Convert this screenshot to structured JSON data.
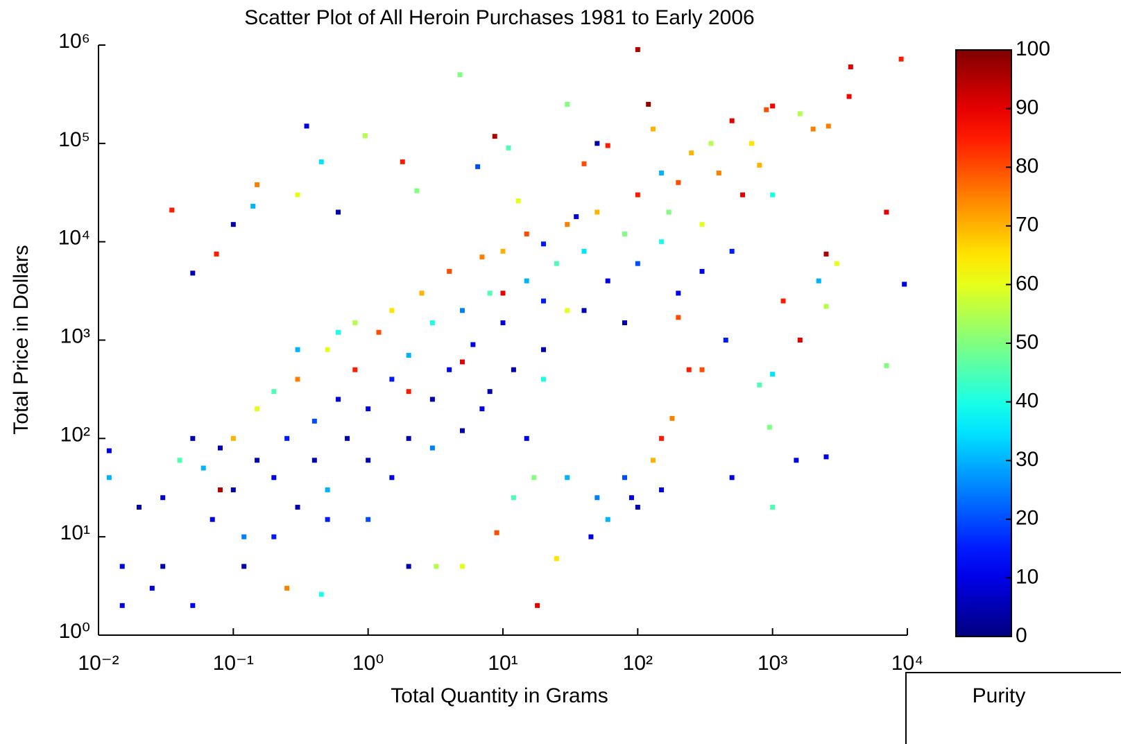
{
  "chart_data": {
    "type": "scatter",
    "title": "Scatter Plot of All Heroin Purchases 1981 to Early 2006",
    "x_label": "Total Quantity in Grams",
    "y_label": "Total Price in Dollars",
    "colorbar_label": "Purity",
    "xscale": "log",
    "yscale": "log",
    "xlim": [
      0.01,
      10000
    ],
    "ylim": [
      1,
      1000000
    ],
    "xticks": [
      {
        "value": 0.01,
        "label": "10⁻²"
      },
      {
        "value": 0.1,
        "label": "10⁻¹"
      },
      {
        "value": 1,
        "label": "10⁰"
      },
      {
        "value": 10,
        "label": "10¹"
      },
      {
        "value": 100,
        "label": "10²"
      },
      {
        "value": 1000,
        "label": "10³"
      },
      {
        "value": 10000,
        "label": "10⁴"
      }
    ],
    "yticks": [
      {
        "value": 1,
        "label": "10⁰"
      },
      {
        "value": 10,
        "label": "10¹"
      },
      {
        "value": 100,
        "label": "10²"
      },
      {
        "value": 1000,
        "label": "10³"
      },
      {
        "value": 10000,
        "label": "10⁴"
      },
      {
        "value": 100000,
        "label": "10⁵"
      },
      {
        "value": 1000000,
        "label": "10⁶"
      }
    ],
    "clim": [
      0,
      100
    ],
    "cticks": [
      0,
      10,
      20,
      30,
      40,
      50,
      60,
      70,
      80,
      90,
      100
    ],
    "colormap": "jet",
    "x": [
      0.035,
      0.05,
      0.075,
      0.1,
      0.15,
      0.14,
      0.3,
      0.35,
      0.45,
      0.6,
      0.95,
      1.8,
      2.3,
      4.8,
      6.5,
      8.7,
      11,
      13,
      20,
      30,
      35,
      40,
      50,
      60,
      100,
      120,
      130,
      150,
      170,
      250,
      350,
      500,
      700,
      900,
      1000,
      1600,
      2000,
      2600,
      3800,
      3700,
      9000,
      7000,
      9500,
      2500,
      3000,
      2200,
      1200,
      1600,
      2500,
      7000,
      950,
      1000,
      1500,
      2500,
      500,
      450,
      800,
      1000,
      300,
      240,
      200,
      180,
      150,
      130,
      100,
      80,
      45,
      25,
      18,
      17,
      12,
      9,
      5,
      3.2,
      2,
      0.45,
      0.25,
      0.12,
      0.03,
      0.025,
      0.015,
      0.05,
      0.015,
      0.012,
      0.012,
      0.02,
      0.03,
      0.04,
      0.05,
      0.06,
      0.07,
      0.08,
      0.1,
      0.1,
      0.12,
      0.15,
      0.15,
      0.2,
      0.2,
      0.25,
      0.3,
      0.3,
      0.4,
      0.4,
      0.5,
      0.5,
      0.6,
      0.7,
      0.8,
      0.8,
      1,
      1,
      1.2,
      1.5,
      1.5,
      2,
      2,
      2.5,
      3,
      3,
      4,
      4,
      5,
      5,
      6,
      7,
      8,
      8,
      10,
      10,
      12,
      15,
      15,
      20,
      20,
      25,
      30,
      40,
      40,
      50,
      60,
      80,
      80,
      100,
      100,
      150,
      200,
      200,
      300,
      300,
      400,
      500,
      600,
      800,
      1000,
      0.3,
      0.6,
      2,
      5,
      10,
      20,
      30,
      0.08,
      0.2,
      0.5,
      1,
      1.5,
      3,
      7,
      15,
      30,
      50,
      60,
      90,
      150
    ],
    "y": [
      21000,
      4800,
      7500,
      15000,
      38000,
      23000,
      30000,
      150000,
      65000,
      20000,
      120000,
      65000,
      33000,
      500000,
      58000,
      118000,
      90000,
      26000,
      9500,
      250000,
      18000,
      62000,
      100000,
      95000,
      900000,
      250000,
      140000,
      50000,
      20000,
      80000,
      100000,
      170000,
      100000,
      220000,
      240000,
      200000,
      140000,
      150000,
      600000,
      300000,
      720000,
      20000,
      3700,
      7500,
      6000,
      4000,
      2500,
      1000,
      2200,
      550,
      130,
      20,
      60,
      65,
      40,
      1000,
      350,
      450,
      500,
      500,
      1700,
      160,
      100,
      60,
      20,
      40,
      10,
      6,
      2,
      40,
      25,
      11,
      5,
      5,
      5,
      2.6,
      3,
      5,
      5,
      3,
      2,
      2,
      5,
      40,
      75,
      20,
      25,
      60,
      100,
      50,
      15,
      80,
      30,
      100,
      10,
      60,
      200,
      40,
      300,
      100,
      20,
      400,
      150,
      60,
      800,
      30,
      250,
      100,
      1500,
      500,
      200,
      60,
      1200,
      400,
      2000,
      100,
      700,
      3000,
      250,
      1500,
      500,
      5000,
      120,
      2000,
      900,
      7000,
      300,
      3000,
      1500,
      8000,
      500,
      4000,
      12000,
      800,
      2500,
      6000,
      15000,
      2000,
      8000,
      20000,
      4000,
      12000,
      1500,
      30000,
      6000,
      10000,
      40000,
      3000,
      15000,
      5000,
      50000,
      8000,
      30000,
      60000,
      30000,
      800,
      1200,
      300,
      600,
      3000,
      400,
      2000,
      30,
      10,
      15,
      15,
      40,
      80,
      200,
      100,
      40,
      25,
      15,
      25,
      30
    ],
    "c": [
      85,
      5,
      85,
      5,
      75,
      30,
      60,
      10,
      35,
      5,
      55,
      85,
      50,
      50,
      20,
      95,
      45,
      60,
      15,
      50,
      10,
      80,
      5,
      85,
      95,
      98,
      70,
      30,
      50,
      70,
      55,
      90,
      65,
      80,
      88,
      55,
      75,
      75,
      90,
      88,
      85,
      90,
      10,
      95,
      60,
      30,
      85,
      90,
      55,
      50,
      50,
      45,
      10,
      10,
      10,
      15,
      45,
      35,
      80,
      85,
      80,
      75,
      85,
      70,
      5,
      20,
      10,
      65,
      90,
      50,
      45,
      80,
      60,
      55,
      5,
      40,
      75,
      5,
      5,
      10,
      10,
      10,
      10,
      30,
      10,
      5,
      8,
      45,
      5,
      30,
      10,
      5,
      5,
      70,
      25,
      5,
      60,
      10,
      45,
      15,
      5,
      75,
      20,
      5,
      60,
      30,
      10,
      5,
      55,
      85,
      10,
      5,
      80,
      15,
      65,
      5,
      30,
      70,
      5,
      40,
      10,
      80,
      5,
      25,
      10,
      75,
      5,
      45,
      10,
      70,
      5,
      30,
      80,
      5,
      15,
      45,
      75,
      5,
      35,
      70,
      10,
      50,
      5,
      85,
      20,
      40,
      80,
      10,
      60,
      10,
      75,
      15,
      90,
      70,
      40,
      30,
      40,
      85,
      90,
      90,
      40,
      60,
      95,
      15,
      15,
      20,
      10,
      25,
      10,
      10,
      30,
      25,
      30,
      10,
      10
    ]
  }
}
